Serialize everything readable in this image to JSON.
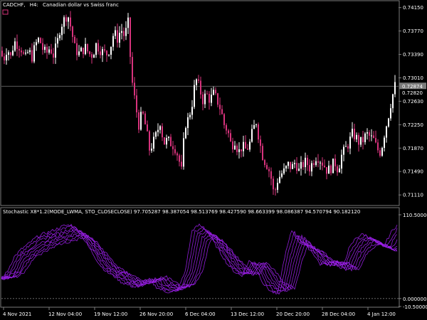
{
  "window": {
    "symbol": "CADCHF,",
    "timeframe": "H4:",
    "description": "Canadian dollar vs Swiss franc"
  },
  "price_axis": {
    "ticks": [
      "0.74150",
      "0.73770",
      "0.73390",
      "0.73010",
      "0.72630",
      "0.72250",
      "0.71870",
      "0.71490",
      "0.71110"
    ],
    "current_price": "0.72874",
    "marker_price": "0.72820"
  },
  "indicator": {
    "header": "Stochastic X8*1.2(MODE_LWMA, STO_CLOSECLOSE) 97.705287 98.387054 98.513769 98.427590 98.663399 98.086387 94.570794 90.182120",
    "axis_ticks": [
      "110.500000",
      "0.000000",
      "-10.500000"
    ]
  },
  "time_axis": {
    "labels": [
      "4 Nov 2021",
      "12 Nov 04:00",
      "19 Nov 12:00",
      "26 Nov 20:00",
      "6 Dec 04:00",
      "13 Dec 12:00",
      "20 Dec 20:00",
      "28 Dec 04:00",
      "4 Jan 12:00"
    ]
  },
  "colors": {
    "background": "#000000",
    "grid": "#7a7a7a",
    "bull_candle": "#ffffff",
    "bear_candle": "#d7337c",
    "stoch_lines": "#a020f0",
    "price_marker": "#7a7a7a"
  },
  "chart_data": [
    {
      "type": "candlestick",
      "title": "CADCHF, H4: Canadian dollar vs Swiss franc",
      "ylim": [
        0.7095,
        0.7425
      ],
      "close_path": [
        [
          0,
          0.7345
        ],
        [
          5,
          0.733
        ],
        [
          10,
          0.735
        ],
        [
          15,
          0.7335
        ],
        [
          20,
          0.736
        ],
        [
          25,
          0.7355
        ],
        [
          30,
          0.7348
        ],
        [
          35,
          0.733
        ],
        [
          40,
          0.7345
        ],
        [
          45,
          0.7335
        ],
        [
          50,
          0.7355
        ],
        [
          55,
          0.7365
        ],
        [
          60,
          0.7348
        ],
        [
          65,
          0.734
        ],
        [
          70,
          0.735
        ],
        [
          75,
          0.7338
        ],
        [
          80,
          0.7355
        ],
        [
          85,
          0.7385
        ],
        [
          90,
          0.7395
        ],
        [
          95,
          0.7405
        ],
        [
          100,
          0.738
        ],
        [
          105,
          0.735
        ],
        [
          110,
          0.734
        ],
        [
          115,
          0.7345
        ],
        [
          120,
          0.735
        ],
        [
          125,
          0.734
        ],
        [
          130,
          0.7338
        ],
        [
          135,
          0.7355
        ],
        [
          140,
          0.7348
        ],
        [
          145,
          0.7342
        ],
        [
          150,
          0.734
        ],
        [
          155,
          0.735
        ],
        [
          160,
          0.7375
        ],
        [
          165,
          0.7365
        ],
        [
          170,
          0.738
        ],
        [
          175,
          0.7368
        ],
        [
          180,
          0.739
        ],
        [
          185,
          0.73
        ],
        [
          190,
          0.726
        ],
        [
          195,
          0.7225
        ],
        [
          200,
          0.7245
        ],
        [
          205,
          0.722
        ],
        [
          210,
          0.7185
        ],
        [
          215,
          0.7195
        ],
        [
          220,
          0.721
        ],
        [
          225,
          0.723
        ],
        [
          230,
          0.7195
        ],
        [
          235,
          0.72
        ],
        [
          240,
          0.7195
        ],
        [
          245,
          0.719
        ],
        [
          250,
          0.7175
        ],
        [
          255,
          0.715
        ],
        [
          260,
          0.7225
        ],
        [
          265,
          0.7235
        ],
        [
          270,
          0.726
        ],
        [
          275,
          0.73
        ],
        [
          280,
          0.7285
        ],
        [
          285,
          0.7265
        ],
        [
          290,
          0.7275
        ],
        [
          295,
          0.7265
        ],
        [
          300,
          0.7275
        ],
        [
          305,
          0.7265
        ],
        [
          310,
          0.725
        ],
        [
          315,
          0.7225
        ],
        [
          320,
          0.7215
        ],
        [
          325,
          0.719
        ],
        [
          330,
          0.72
        ],
        [
          335,
          0.718
        ],
        [
          340,
          0.719
        ],
        [
          345,
          0.7185
        ],
        [
          350,
          0.719
        ],
        [
          355,
          0.7215
        ],
        [
          360,
          0.723
        ],
        [
          365,
          0.7195
        ],
        [
          370,
          0.717
        ],
        [
          375,
          0.716
        ],
        [
          380,
          0.7145
        ],
        [
          385,
          0.711
        ],
        [
          390,
          0.7135
        ],
        [
          395,
          0.7145
        ],
        [
          400,
          0.715
        ],
        [
          405,
          0.716
        ],
        [
          410,
          0.7155
        ],
        [
          415,
          0.7165
        ],
        [
          420,
          0.715
        ],
        [
          425,
          0.716
        ],
        [
          430,
          0.7165
        ],
        [
          435,
          0.7155
        ],
        [
          440,
          0.7165
        ],
        [
          445,
          0.7175
        ],
        [
          450,
          0.7168
        ],
        [
          455,
          0.716
        ],
        [
          460,
          0.715
        ],
        [
          465,
          0.7155
        ],
        [
          470,
          0.7165
        ],
        [
          475,
          0.7152
        ],
        [
          480,
          0.7175
        ],
        [
          485,
          0.7185
        ],
        [
          490,
          0.7195
        ],
        [
          495,
          0.721
        ],
        [
          500,
          0.7205
        ],
        [
          505,
          0.7195
        ],
        [
          510,
          0.72
        ],
        [
          515,
          0.721
        ],
        [
          520,
          0.7205
        ],
        [
          525,
          0.72
        ],
        [
          530,
          0.7185
        ],
        [
          535,
          0.718
        ],
        [
          540,
          0.721
        ],
        [
          545,
          0.7235
        ],
        [
          550,
          0.7265
        ],
        [
          555,
          0.7288
        ]
      ]
    },
    {
      "type": "line",
      "title": "Stochastic X8*1.2(MODE_LWMA, STO_CLOSECLOSE)",
      "ylim": [
        -10.5,
        110.5
      ],
      "series_count": 8,
      "base_path": [
        [
          0,
          25
        ],
        [
          10,
          35
        ],
        [
          20,
          55
        ],
        [
          30,
          65
        ],
        [
          40,
          72
        ],
        [
          50,
          80
        ],
        [
          60,
          85
        ],
        [
          70,
          88
        ],
        [
          80,
          92
        ],
        [
          90,
          96
        ],
        [
          100,
          97
        ],
        [
          110,
          90
        ],
        [
          120,
          75
        ],
        [
          130,
          60
        ],
        [
          140,
          45
        ],
        [
          150,
          35
        ],
        [
          160,
          30
        ],
        [
          170,
          22
        ],
        [
          180,
          18
        ],
        [
          190,
          15
        ],
        [
          200,
          20
        ],
        [
          210,
          25
        ],
        [
          220,
          15
        ],
        [
          230,
          10
        ],
        [
          240,
          8
        ],
        [
          250,
          12
        ],
        [
          260,
          35
        ],
        [
          270,
          90
        ],
        [
          280,
          97
        ],
        [
          290,
          90
        ],
        [
          300,
          75
        ],
        [
          310,
          60
        ],
        [
          320,
          45
        ],
        [
          330,
          35
        ],
        [
          340,
          30
        ],
        [
          350,
          50
        ],
        [
          360,
          40
        ],
        [
          370,
          20
        ],
        [
          380,
          10
        ],
        [
          390,
          5
        ],
        [
          400,
          55
        ],
        [
          410,
          90
        ],
        [
          420,
          75
        ],
        [
          430,
          70
        ],
        [
          440,
          60
        ],
        [
          450,
          45
        ],
        [
          460,
          50
        ],
        [
          470,
          48
        ],
        [
          480,
          38
        ],
        [
          490,
          65
        ],
        [
          500,
          80
        ],
        [
          510,
          85
        ],
        [
          520,
          80
        ],
        [
          530,
          75
        ],
        [
          540,
          70
        ],
        [
          550,
          88
        ],
        [
          558,
          97
        ]
      ]
    }
  ]
}
